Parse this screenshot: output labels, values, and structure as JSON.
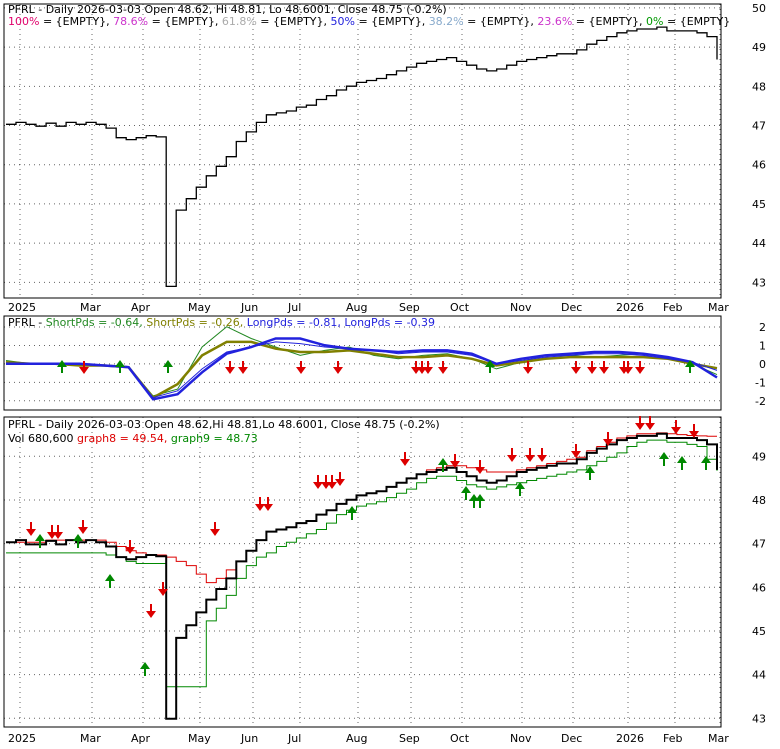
{
  "panels": {
    "fib": {
      "title": "PFRL - Daily 2026-03-03 Open 48.62, Hi 48.81, Lo 48.6001, Close 48.75 (-0.2%)",
      "fib_items": [
        {
          "pct": "100%",
          "val": " = {EMPTY},",
          "color": "#e0006a"
        },
        {
          "pct": "78.6%",
          "val": " = {EMPTY},",
          "color": "#cc33cc"
        },
        {
          "pct": "61.8%",
          "val": " = {EMPTY},",
          "color": "#aaaaaa"
        },
        {
          "pct": "50%",
          "val": " = {EMPTY},",
          "color": "#2222dd"
        },
        {
          "pct": "38.2%",
          "val": " = {EMPTY},",
          "color": "#88aacc"
        },
        {
          "pct": "23.6%",
          "val": " = {EMPTY},",
          "color": "#cc33cc"
        },
        {
          "pct": "0%",
          "val": " = {EMPTY}",
          "color": "#009900"
        }
      ]
    },
    "pds": {
      "label_prefix": "PFRL - ",
      "items": [
        {
          "text": "ShortPds = -0.64, ",
          "color": "#228822"
        },
        {
          "text": "ShortPds = -0.26, ",
          "color": "#808000"
        },
        {
          "text": "LongPds = -0.81, ",
          "color": "#2222dd"
        },
        {
          "text": "LongPds = -0.39",
          "color": "#2222dd"
        }
      ]
    },
    "bottom": {
      "title": "PFRL - Daily 2026-03-03 Open 48.62,Hi 48.81,Lo 48.6001, Close 48.75 (-0.2%)",
      "vol_label": "Vol 680,600 ",
      "graph8": "graph8 = 49.54, ",
      "graph9": "graph9 = 48.73"
    }
  },
  "colors": {
    "price": "#000000",
    "graph8": "#dd0000",
    "graph9": "#008800",
    "up_arrow": "#008800",
    "down_arrow": "#dd0000",
    "grid": "#000000"
  },
  "chart_data": [
    {
      "type": "line",
      "title": "PFRL - Daily 2026-03-03 Open 48.62, Hi 48.81, Lo 48.6001, Close 48.75 (-0.2%)",
      "x_ticks": [
        "2025",
        "Mar",
        "Apr",
        "May",
        "Jun",
        "Jul",
        "Aug",
        "Sep",
        "Oct",
        "Nov",
        "Dec",
        "2026",
        "Feb",
        "Mar"
      ],
      "y_ticks": [
        43,
        44,
        45,
        46,
        47,
        48,
        49,
        50
      ],
      "ylim": [
        42.6,
        50.1
      ],
      "series": [
        {
          "values": [
            47.05,
            47.1,
            47.05,
            47.0,
            47.08,
            47.0,
            47.1,
            47.05,
            47.1,
            47.05,
            46.95,
            46.7,
            46.65,
            46.7,
            46.75,
            46.72,
            42.8,
            44.8,
            45.1,
            45.4,
            45.7,
            45.95,
            46.2,
            46.6,
            46.85,
            47.1,
            47.3,
            47.35,
            47.4,
            47.5,
            47.55,
            47.7,
            47.8,
            47.95,
            48.05,
            48.15,
            48.2,
            48.25,
            48.35,
            48.45,
            48.55,
            48.65,
            48.7,
            48.75,
            48.8,
            48.7,
            48.6,
            48.5,
            48.45,
            48.5,
            48.6,
            48.7,
            48.75,
            48.8,
            48.85,
            48.9,
            48.9,
            49.0,
            49.15,
            49.25,
            49.35,
            49.45,
            49.5,
            49.55,
            49.55,
            49.6,
            49.5,
            49.5,
            49.5,
            49.45,
            49.35,
            48.75
          ]
        }
      ]
    },
    {
      "type": "line",
      "title": "PFRL - ShortPds = -0.64, ShortPds = -0.26, LongPds = -0.81, LongPds = -0.39",
      "y_ticks": [
        -2,
        -1,
        0,
        1,
        2
      ],
      "ylim": [
        -2.5,
        2.6
      ],
      "series": [
        {
          "name": "ShortPds",
          "values": [
            0.2,
            0.0,
            0.0,
            0.0,
            -0.1,
            -0.2,
            -1.9,
            -1.5,
            1.0,
            2.2,
            1.5,
            1.0,
            0.5,
            0.8,
            1.0,
            0.5,
            0.3,
            0.5,
            0.6,
            0.3,
            -0.3,
            0.1,
            0.5,
            0.5,
            0.4,
            0.5,
            0.6,
            0.4,
            0.0,
            -0.64
          ]
        },
        {
          "name": "ShortPds",
          "values": [
            0.1,
            0.0,
            0.0,
            -0.1,
            -0.1,
            -0.2,
            -2.0,
            -1.2,
            0.5,
            1.3,
            1.3,
            0.9,
            0.7,
            0.7,
            0.8,
            0.6,
            0.4,
            0.4,
            0.5,
            0.3,
            -0.1,
            0.1,
            0.3,
            0.4,
            0.4,
            0.4,
            0.4,
            0.3,
            0.0,
            -0.26
          ]
        },
        {
          "name": "LongPds",
          "values": [
            0.0,
            0.0,
            0.0,
            0.0,
            -0.1,
            -0.2,
            -2.1,
            -1.8,
            -0.5,
            0.6,
            1.0,
            1.5,
            1.5,
            1.1,
            0.9,
            0.8,
            0.7,
            0.8,
            0.8,
            0.6,
            0.0,
            0.3,
            0.5,
            0.6,
            0.7,
            0.7,
            0.6,
            0.4,
            0.1,
            -0.81
          ]
        },
        {
          "name": "LongPds",
          "values": [
            0.0,
            0.0,
            0.0,
            0.0,
            -0.1,
            -0.2,
            -2.0,
            -1.6,
            -0.3,
            0.7,
            1.0,
            1.3,
            1.2,
            1.0,
            0.9,
            0.8,
            0.6,
            0.7,
            0.7,
            0.5,
            0.0,
            0.2,
            0.4,
            0.5,
            0.6,
            0.6,
            0.5,
            0.3,
            0.1,
            -0.39
          ]
        }
      ]
    },
    {
      "type": "line",
      "title": "PFRL - Daily 2026-03-03 Open 48.62,Hi 48.81,Lo 48.6001, Close 48.75 (-0.2%)",
      "x_ticks": [
        "2025",
        "Mar",
        "Apr",
        "May",
        "Jun",
        "Jul",
        "Aug",
        "Sep",
        "Oct",
        "Nov",
        "Dec",
        "2026",
        "Feb",
        "Mar"
      ],
      "y_ticks": [
        43,
        44,
        45,
        46,
        47,
        48,
        49
      ],
      "ylim": [
        42.8,
        49.9
      ],
      "series": [
        {
          "values": [
            47.05,
            47.1,
            47.0,
            47.0,
            47.08,
            47.0,
            47.1,
            47.05,
            47.1,
            47.05,
            46.95,
            46.7,
            46.65,
            46.7,
            46.75,
            46.72,
            42.9,
            44.8,
            45.1,
            45.4,
            45.7,
            45.95,
            46.2,
            46.6,
            46.85,
            47.1,
            47.3,
            47.35,
            47.4,
            47.5,
            47.55,
            47.7,
            47.8,
            47.95,
            48.05,
            48.15,
            48.2,
            48.25,
            48.35,
            48.45,
            48.55,
            48.65,
            48.7,
            48.75,
            48.8,
            48.7,
            48.6,
            48.5,
            48.45,
            48.5,
            48.6,
            48.7,
            48.75,
            48.8,
            48.85,
            48.9,
            48.9,
            49.0,
            49.15,
            49.25,
            49.35,
            49.45,
            49.5,
            49.55,
            49.55,
            49.6,
            49.5,
            49.5,
            49.5,
            49.45,
            49.35,
            48.75
          ]
        },
        {
          "name": "graph8",
          "values": [
            47.05,
            47.05,
            47.05,
            47.05,
            47.1,
            47.1,
            47.1,
            47.1,
            47.1,
            47.1,
            47.05,
            46.95,
            46.85,
            46.8,
            46.75,
            46.75,
            46.7,
            46.6,
            46.5,
            46.3,
            46.1,
            46.2,
            46.4,
            46.6,
            46.85,
            47.1,
            47.3,
            47.35,
            47.4,
            47.5,
            47.55,
            47.7,
            47.8,
            47.95,
            48.05,
            48.15,
            48.2,
            48.25,
            48.35,
            48.45,
            48.55,
            48.65,
            48.75,
            48.8,
            48.85,
            48.85,
            48.8,
            48.75,
            48.7,
            48.7,
            48.7,
            48.75,
            48.8,
            48.85,
            48.9,
            48.95,
            49.0,
            49.05,
            49.2,
            49.3,
            49.4,
            49.5,
            49.55,
            49.6,
            49.6,
            49.62,
            49.6,
            49.58,
            49.56,
            49.55,
            49.54,
            49.54
          ]
        },
        {
          "name": "graph9",
          "values": [
            46.8,
            46.8,
            46.8,
            46.8,
            46.8,
            46.8,
            46.8,
            46.8,
            46.8,
            46.8,
            46.75,
            46.7,
            46.6,
            46.55,
            46.55,
            46.55,
            43.65,
            43.65,
            43.65,
            43.65,
            45.2,
            45.5,
            45.8,
            46.2,
            46.5,
            46.7,
            46.8,
            46.95,
            47.05,
            47.15,
            47.25,
            47.35,
            47.5,
            47.7,
            47.8,
            47.9,
            47.95,
            48.0,
            48.1,
            48.2,
            48.3,
            48.45,
            48.55,
            48.6,
            48.6,
            48.5,
            48.4,
            48.35,
            48.3,
            48.35,
            48.4,
            48.45,
            48.5,
            48.55,
            48.6,
            48.65,
            48.7,
            48.75,
            48.85,
            48.95,
            49.05,
            49.15,
            49.3,
            49.4,
            49.45,
            49.45,
            49.4,
            49.4,
            49.35,
            49.3,
            49.0,
            48.73
          ]
        }
      ]
    }
  ]
}
